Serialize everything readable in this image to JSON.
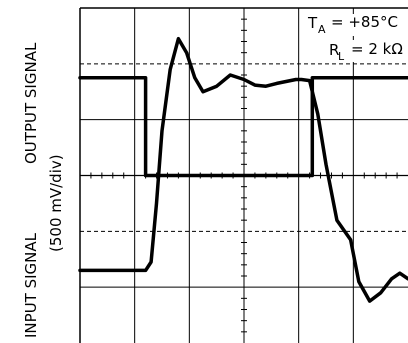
{
  "chart_data": {
    "type": "line",
    "ylabel_output": "OUTPUT SIGNAL",
    "ylabel_input": "INPUT SIGNAL",
    "ylabel_scale": "(500 mV/div)",
    "annotations": {
      "ta_label": "T",
      "ta_sub": "A",
      "ta_value": "= +85°C",
      "rl_label": "R",
      "rl_sub": "L",
      "rl_value": "= 2 kΩ"
    },
    "grid": true,
    "xlim": [
      0,
      6
    ],
    "ylim": [
      0,
      6
    ],
    "series": [
      {
        "role": "output",
        "x": [
          0,
          1.1,
          1.2,
          1.3,
          1.4,
          1.5,
          1.65,
          1.8,
          1.95,
          2.1,
          2.25,
          2.5,
          2.75,
          3.0,
          3.2,
          3.4,
          3.6,
          3.95,
          4.05,
          4.2,
          4.35,
          4.5,
          4.7,
          4.95,
          5.1,
          5.3,
          5.5,
          5.7,
          5.85,
          6.0
        ],
        "y": [
          1.3,
          1.3,
          1.3,
          1.45,
          2.5,
          3.8,
          4.9,
          5.45,
          5.2,
          4.75,
          4.5,
          4.6,
          4.8,
          4.72,
          4.62,
          4.6,
          4.65,
          4.72,
          4.72,
          4.7,
          4.1,
          3.2,
          2.2,
          1.85,
          1.1,
          0.75,
          0.9,
          1.15,
          1.25,
          1.15
        ]
      },
      {
        "role": "input",
        "x": [
          0,
          1.2,
          1.2,
          4.25,
          4.25,
          6.0
        ],
        "y": [
          4.75,
          4.75,
          3.0,
          3.0,
          4.75,
          4.75
        ]
      }
    ]
  }
}
